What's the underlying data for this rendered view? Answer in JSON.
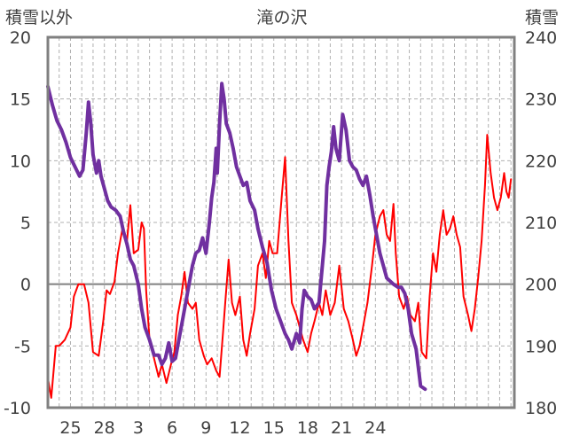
{
  "chart_data": {
    "type": "line",
    "title": "滝の沢",
    "ylabel_left": "積雪以外",
    "ylabel_right": "積雪",
    "ylim_left": [
      -10,
      20
    ],
    "ylim_right": [
      180,
      240
    ],
    "yticks_left": [
      "20",
      "15",
      "10",
      "5",
      "0",
      "-5",
      "-10"
    ],
    "yticks_right": [
      "240",
      "230",
      "220",
      "210",
      "200",
      "190",
      "180"
    ],
    "xticks": [
      "25",
      "28",
      "3",
      "6",
      "9",
      "12",
      "15",
      "18",
      "21",
      "24"
    ],
    "grid": true,
    "colors": {
      "red_series": "#ff0000",
      "purple_series": "#7030a0",
      "frame": "#808080",
      "grid": "#b0b0b0"
    },
    "series": [
      {
        "axis": "left",
        "color": "#ff0000",
        "points": [
          [
            23.0,
            -7.6
          ],
          [
            23.3,
            -9.2
          ],
          [
            23.7,
            -5.0
          ],
          [
            24.0,
            -5.0
          ],
          [
            24.5,
            -4.5
          ],
          [
            25.0,
            -3.5
          ],
          [
            25.3,
            -1.0
          ],
          [
            25.7,
            0.0
          ],
          [
            26.2,
            0.0
          ],
          [
            26.6,
            -1.5
          ],
          [
            27.0,
            -5.5
          ],
          [
            27.5,
            -5.8
          ],
          [
            27.9,
            -3.0
          ],
          [
            28.2,
            -0.5
          ],
          [
            28.5,
            -0.8
          ],
          [
            28.9,
            0.2
          ],
          [
            29.2,
            2.5
          ],
          [
            29.6,
            4.5
          ],
          [
            30.0,
            3.5
          ],
          [
            30.3,
            6.4
          ],
          [
            30.6,
            2.5
          ],
          [
            31.0,
            2.8
          ],
          [
            31.3,
            5.0
          ],
          [
            31.5,
            4.5
          ],
          [
            31.7,
            -0.5
          ],
          [
            32.0,
            -4.5
          ],
          [
            32.4,
            -6.0
          ],
          [
            32.8,
            -7.5
          ],
          [
            33.1,
            -6.5
          ],
          [
            33.5,
            -8.0
          ],
          [
            33.9,
            -6.5
          ],
          [
            34.2,
            -5.5
          ],
          [
            34.5,
            -2.5
          ],
          [
            34.8,
            -1.0
          ],
          [
            35.1,
            1.0
          ],
          [
            35.4,
            -1.5
          ],
          [
            35.8,
            -2.0
          ],
          [
            36.1,
            -1.5
          ],
          [
            36.4,
            -4.5
          ],
          [
            36.8,
            -5.8
          ],
          [
            37.1,
            -6.5
          ],
          [
            37.5,
            -6.0
          ],
          [
            37.9,
            -7.0
          ],
          [
            38.2,
            -7.5
          ],
          [
            38.5,
            -4.0
          ],
          [
            38.7,
            -1.5
          ],
          [
            39.0,
            2.0
          ],
          [
            39.3,
            -1.5
          ],
          [
            39.6,
            -2.5
          ],
          [
            40.0,
            -1.0
          ],
          [
            40.3,
            -4.5
          ],
          [
            40.6,
            -5.8
          ],
          [
            40.9,
            -4.0
          ],
          [
            41.3,
            -2.0
          ],
          [
            41.6,
            1.5
          ],
          [
            42.0,
            2.5
          ],
          [
            42.3,
            0.5
          ],
          [
            42.6,
            3.5
          ],
          [
            42.9,
            2.5
          ],
          [
            43.3,
            2.5
          ],
          [
            43.7,
            7.0
          ],
          [
            44.0,
            10.3
          ],
          [
            44.3,
            3.5
          ],
          [
            44.6,
            -1.5
          ],
          [
            45.0,
            -2.5
          ],
          [
            45.3,
            -3.5
          ],
          [
            45.6,
            -4.5
          ],
          [
            46.0,
            -5.5
          ],
          [
            46.3,
            -4.0
          ],
          [
            46.6,
            -3.0
          ],
          [
            47.0,
            -1.5
          ],
          [
            47.3,
            -2.5
          ],
          [
            47.6,
            -0.5
          ],
          [
            48.0,
            -2.5
          ],
          [
            48.4,
            -1.5
          ],
          [
            48.8,
            1.5
          ],
          [
            49.2,
            -2.0
          ],
          [
            49.6,
            -3.0
          ],
          [
            50.0,
            -4.5
          ],
          [
            50.3,
            -5.8
          ],
          [
            50.6,
            -5.0
          ],
          [
            51.0,
            -3.0
          ],
          [
            51.3,
            -1.5
          ],
          [
            51.7,
            1.5
          ],
          [
            52.0,
            4.0
          ],
          [
            52.4,
            5.5
          ],
          [
            52.7,
            6.0
          ],
          [
            53.0,
            4.0
          ],
          [
            53.3,
            3.5
          ],
          [
            53.6,
            6.5
          ],
          [
            53.8,
            2.5
          ],
          [
            54.1,
            -1.0
          ],
          [
            54.5,
            -2.0
          ],
          [
            54.8,
            -1.0
          ],
          [
            55.1,
            -2.5
          ],
          [
            55.5,
            -3.0
          ],
          [
            55.8,
            -1.5
          ],
          [
            56.1,
            -5.5
          ],
          [
            56.5,
            -6.0
          ],
          [
            56.8,
            -1.0
          ],
          [
            57.1,
            2.5
          ],
          [
            57.4,
            1.0
          ],
          [
            57.7,
            4.0
          ],
          [
            58.0,
            6.0
          ],
          [
            58.3,
            4.0
          ],
          [
            58.6,
            4.5
          ],
          [
            58.9,
            5.5
          ],
          [
            59.2,
            4.0
          ],
          [
            59.5,
            3.0
          ],
          [
            59.8,
            -1.0
          ],
          [
            60.2,
            -2.5
          ],
          [
            60.5,
            -3.8
          ],
          [
            60.8,
            -2.0
          ],
          [
            61.1,
            0.5
          ],
          [
            61.4,
            3.5
          ],
          [
            61.7,
            8.0
          ],
          [
            61.9,
            12.1
          ],
          [
            62.2,
            9.0
          ],
          [
            62.5,
            7.0
          ],
          [
            62.8,
            6.0
          ],
          [
            63.1,
            7.0
          ],
          [
            63.4,
            9.0
          ],
          [
            63.6,
            7.5
          ],
          [
            63.8,
            7.0
          ],
          [
            64.0,
            8.5
          ]
        ]
      },
      {
        "axis": "right",
        "color": "#7030a0",
        "points": [
          [
            23.0,
            232.0
          ],
          [
            23.4,
            229.0
          ],
          [
            23.8,
            226.5
          ],
          [
            24.2,
            225.0
          ],
          [
            24.6,
            223.0
          ],
          [
            25.0,
            220.5
          ],
          [
            25.4,
            219.0
          ],
          [
            25.8,
            217.5
          ],
          [
            26.1,
            218.5
          ],
          [
            26.4,
            224.5
          ],
          [
            26.6,
            229.5
          ],
          [
            26.8,
            226.0
          ],
          [
            27.0,
            221.0
          ],
          [
            27.3,
            218.0
          ],
          [
            27.5,
            220.0
          ],
          [
            27.7,
            217.5
          ],
          [
            28.0,
            215.5
          ],
          [
            28.3,
            213.5
          ],
          [
            28.6,
            212.5
          ],
          [
            29.0,
            212.0
          ],
          [
            29.4,
            211.0
          ],
          [
            29.7,
            208.5
          ],
          [
            30.0,
            206.5
          ],
          [
            30.3,
            204.0
          ],
          [
            30.6,
            203.0
          ],
          [
            31.0,
            200.0
          ],
          [
            31.3,
            196.0
          ],
          [
            31.6,
            193.0
          ],
          [
            32.0,
            191.0
          ],
          [
            32.4,
            188.5
          ],
          [
            32.8,
            188.5
          ],
          [
            33.1,
            187.0
          ],
          [
            33.4,
            188.0
          ],
          [
            33.7,
            190.5
          ],
          [
            34.0,
            187.5
          ],
          [
            34.3,
            188.0
          ],
          [
            34.6,
            191.0
          ],
          [
            34.9,
            194.0
          ],
          [
            35.2,
            197.0
          ],
          [
            35.5,
            200.0
          ],
          [
            35.8,
            203.0
          ],
          [
            36.1,
            205.0
          ],
          [
            36.4,
            205.5
          ],
          [
            36.7,
            207.5
          ],
          [
            37.0,
            205.0
          ],
          [
            37.3,
            210.0
          ],
          [
            37.5,
            214.0
          ],
          [
            37.7,
            216.5
          ],
          [
            37.9,
            222.0
          ],
          [
            38.0,
            218.0
          ],
          [
            38.2,
            226.0
          ],
          [
            38.4,
            232.5
          ],
          [
            38.6,
            230.0
          ],
          [
            38.8,
            226.0
          ],
          [
            39.1,
            224.5
          ],
          [
            39.4,
            222.0
          ],
          [
            39.7,
            219.0
          ],
          [
            40.0,
            217.5
          ],
          [
            40.3,
            216.0
          ],
          [
            40.6,
            216.5
          ],
          [
            40.9,
            213.5
          ],
          [
            41.3,
            212.0
          ],
          [
            41.6,
            209.0
          ],
          [
            42.0,
            206.0
          ],
          [
            42.4,
            203.5
          ],
          [
            42.8,
            199.0
          ],
          [
            43.2,
            196.0
          ],
          [
            43.6,
            194.0
          ],
          [
            44.0,
            192.0
          ],
          [
            44.3,
            191.0
          ],
          [
            44.6,
            189.5
          ],
          [
            45.0,
            192.0
          ],
          [
            45.3,
            190.5
          ],
          [
            45.5,
            196.0
          ],
          [
            45.7,
            199.0
          ],
          [
            46.0,
            198.0
          ],
          [
            46.3,
            197.5
          ],
          [
            46.6,
            196.0
          ],
          [
            47.0,
            197.0
          ],
          [
            47.3,
            203.0
          ],
          [
            47.5,
            207.0
          ],
          [
            47.7,
            216.0
          ],
          [
            47.9,
            219.0
          ],
          [
            48.1,
            221.5
          ],
          [
            48.3,
            225.5
          ],
          [
            48.5,
            222.0
          ],
          [
            48.8,
            220.0
          ],
          [
            49.1,
            227.5
          ],
          [
            49.4,
            225.0
          ],
          [
            49.7,
            220.0
          ],
          [
            50.0,
            219.0
          ],
          [
            50.3,
            218.5
          ],
          [
            50.6,
            217.0
          ],
          [
            50.9,
            216.0
          ],
          [
            51.2,
            217.5
          ],
          [
            51.5,
            214.5
          ],
          [
            51.8,
            211.0
          ],
          [
            52.1,
            208.0
          ],
          [
            52.4,
            205.0
          ],
          [
            52.7,
            203.0
          ],
          [
            53.0,
            201.0
          ],
          [
            53.3,
            200.5
          ],
          [
            53.6,
            200.0
          ],
          [
            54.0,
            199.5
          ],
          [
            54.3,
            199.5
          ],
          [
            54.6,
            198.5
          ],
          [
            54.9,
            196.0
          ],
          [
            55.2,
            192.0
          ],
          [
            55.6,
            189.5
          ],
          [
            56.0,
            183.5
          ],
          [
            56.4,
            183.0
          ]
        ]
      }
    ]
  }
}
